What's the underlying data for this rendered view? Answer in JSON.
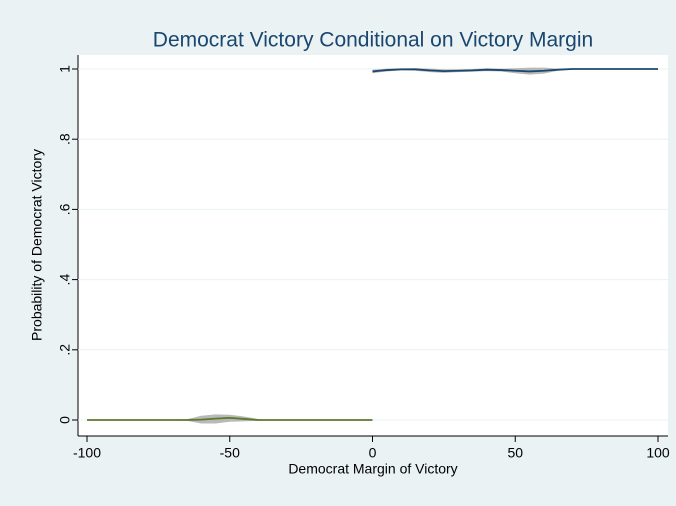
{
  "chart_data": {
    "type": "line",
    "title": "Democrat Victory Conditional on Victory Margin",
    "x_label": "Democrat Margin of Victory",
    "y_label": "Probability of Democrat Victory",
    "xlim": [
      -100,
      100
    ],
    "xticks": [
      -100,
      -50,
      0,
      50,
      100
    ],
    "ylim": [
      0,
      1
    ],
    "yticks": [
      0,
      {
        "value": 0.2,
        "label": ".2"
      },
      {
        "value": 0.4,
        "label": ".4"
      },
      {
        "value": 0.6,
        "label": ".6"
      },
      {
        "value": 0.8,
        "label": ".8"
      },
      1
    ],
    "grid": true,
    "band_color": "#a8a8a8",
    "series": [
      {
        "color": "#5b7a2a",
        "x": [
          -100,
          -80,
          -65,
          -60,
          -55,
          -50,
          -45,
          -40,
          -35,
          -20,
          0
        ],
        "values": [
          0,
          0,
          0,
          0.001,
          0.004,
          0.006,
          0.003,
          0,
          0,
          0,
          0
        ],
        "lower": [
          0,
          0,
          -0.002,
          -0.01,
          -0.01,
          -0.005,
          -0.004,
          -0.002,
          0,
          0,
          0
        ],
        "upper": [
          0,
          0,
          0.002,
          0.012,
          0.016,
          0.015,
          0.01,
          0.003,
          0,
          0,
          0
        ]
      },
      {
        "color": "#1a476f",
        "x": [
          0,
          5,
          10,
          15,
          20,
          25,
          30,
          35,
          40,
          45,
          50,
          55,
          60,
          65,
          70,
          80,
          90,
          100
        ],
        "values": [
          0.993,
          0.997,
          0.999,
          0.999,
          0.996,
          0.994,
          0.995,
          0.996,
          0.998,
          0.997,
          0.995,
          0.993,
          0.995,
          0.998,
          1,
          1,
          1,
          1
        ],
        "lower": [
          0.988,
          0.993,
          0.996,
          0.995,
          0.991,
          0.989,
          0.991,
          0.992,
          0.994,
          0.993,
          0.988,
          0.984,
          0.987,
          0.995,
          0.999,
          1,
          1,
          1
        ],
        "upper": [
          0.998,
          1.001,
          1.002,
          1.003,
          1.001,
          0.999,
          0.999,
          1,
          1.002,
          1.001,
          1.002,
          1.004,
          1.004,
          1.001,
          1.001,
          1,
          1,
          1
        ]
      }
    ]
  }
}
